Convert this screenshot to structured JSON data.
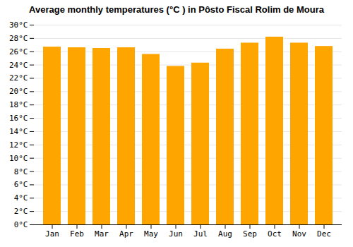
{
  "chart_data": {
    "type": "bar",
    "title": "Average monthly temperatures (°C ) in Pôsto Fiscal Rolim de Moura",
    "categories": [
      "Jan",
      "Feb",
      "Mar",
      "Apr",
      "May",
      "Jun",
      "Jul",
      "Aug",
      "Sep",
      "Oct",
      "Nov",
      "Dec"
    ],
    "values": [
      26.7,
      26.6,
      26.5,
      26.6,
      25.6,
      23.8,
      24.3,
      26.4,
      27.3,
      28.2,
      27.3,
      26.8
    ],
    "color": "#FFA500",
    "ylim": [
      0,
      30
    ],
    "yticks": [
      {
        "value": 0,
        "label": "0°C"
      },
      {
        "value": 2,
        "label": "2°C"
      },
      {
        "value": 4,
        "label": "4°C"
      },
      {
        "value": 6,
        "label": "6°C"
      },
      {
        "value": 8,
        "label": "8°C"
      },
      {
        "value": 10,
        "label": "10°C"
      },
      {
        "value": 12,
        "label": "12°C"
      },
      {
        "value": 14,
        "label": "14°C"
      },
      {
        "value": 16,
        "label": "16°C"
      },
      {
        "value": 18,
        "label": "18°C"
      },
      {
        "value": 20,
        "label": "20°C"
      },
      {
        "value": 22,
        "label": "22°C"
      },
      {
        "value": 24,
        "label": "24°C"
      },
      {
        "value": 26,
        "label": "26°C"
      },
      {
        "value": 28,
        "label": "28°C"
      },
      {
        "value": 30,
        "label": "30°C"
      }
    ],
    "grid": true
  }
}
